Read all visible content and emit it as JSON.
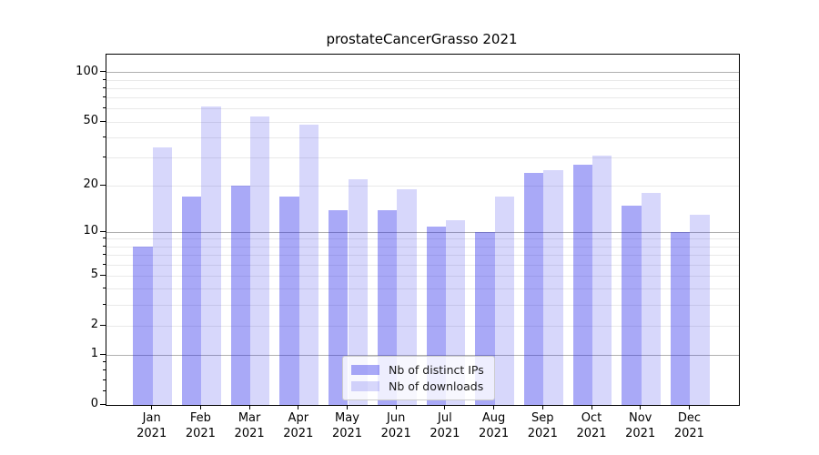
{
  "title": "prostateCancerGrasso 2021",
  "legend": {
    "items": [
      {
        "label": "Nb of distinct IPs",
        "series": "ips"
      },
      {
        "label": "Nb of downloads",
        "series": "downloads"
      }
    ]
  },
  "colors": {
    "ips_bar": "rgba(30,30,235,0.385)",
    "downloads_bar": "rgba(30,30,235,0.175)",
    "major_gridline": "#b0b0b0",
    "minor_gridline": "#e9e9e9",
    "axis": "#000000",
    "legend_border": "#cccccc"
  },
  "x_axis": {
    "months": [
      "Jan",
      "Feb",
      "Mar",
      "Apr",
      "May",
      "Jun",
      "Jul",
      "Aug",
      "Sep",
      "Oct",
      "Nov",
      "Dec"
    ],
    "year_label": "2021"
  },
  "y_axis": {
    "tick_labels": [
      "0",
      "1",
      "2",
      "5",
      "10",
      "20",
      "50",
      "100"
    ],
    "tick_values": [
      0,
      1,
      2,
      5,
      10,
      20,
      50,
      100
    ]
  },
  "chart_data": {
    "type": "bar",
    "title": "prostateCancerGrasso 2021",
    "categories": [
      "Jan 2021",
      "Feb 2021",
      "Mar 2021",
      "Apr 2021",
      "May 2021",
      "Jun 2021",
      "Jul 2021",
      "Aug 2021",
      "Sep 2021",
      "Oct 2021",
      "Nov 2021",
      "Dec 2021"
    ],
    "series": [
      {
        "name": "Nb of distinct IPs",
        "values": [
          8,
          17,
          20,
          17,
          14,
          14,
          11,
          10,
          24,
          27,
          15,
          10
        ]
      },
      {
        "name": "Nb of downloads",
        "values": [
          35,
          62,
          54,
          48,
          22,
          19,
          12,
          17,
          25,
          31,
          18,
          13
        ]
      }
    ],
    "xlabel": "",
    "ylabel": "",
    "yscale": "log1p",
    "ylim": [
      0,
      129
    ],
    "ytick_values": [
      0,
      1,
      2,
      5,
      10,
      20,
      50,
      100
    ],
    "ytick_labels": [
      "0",
      "1",
      "2",
      "5",
      "10",
      "20",
      "50",
      "100"
    ],
    "major_grid_values": [
      1,
      10,
      100
    ],
    "minor_grid_values": [
      2,
      3,
      4,
      5,
      6,
      7,
      8,
      9,
      20,
      30,
      40,
      50,
      60,
      70,
      80,
      90
    ],
    "minor_tick_values": [
      0.2,
      0.4,
      0.6,
      0.8,
      2,
      3,
      4,
      5,
      6,
      7,
      8,
      9,
      20,
      30,
      40,
      50,
      60,
      70,
      80,
      90
    ],
    "grid": "horizontal",
    "legend_position": "inside-bottom-center"
  }
}
